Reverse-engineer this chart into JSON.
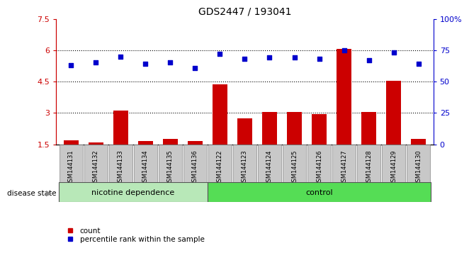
{
  "title": "GDS2447 / 193041",
  "samples": [
    "GSM144131",
    "GSM144132",
    "GSM144133",
    "GSM144134",
    "GSM144135",
    "GSM144136",
    "GSM144122",
    "GSM144123",
    "GSM144124",
    "GSM144125",
    "GSM144126",
    "GSM144127",
    "GSM144128",
    "GSM144129",
    "GSM144130"
  ],
  "count_values": [
    1.7,
    1.6,
    3.1,
    1.65,
    1.75,
    1.65,
    4.35,
    2.75,
    3.05,
    3.05,
    2.95,
    6.05,
    3.05,
    4.55,
    1.75
  ],
  "percentile_values": [
    63,
    65,
    70,
    64,
    65,
    61,
    72,
    68,
    69,
    69,
    68,
    75,
    67,
    73,
    64
  ],
  "nicotine_count": 6,
  "ylim_left": [
    1.5,
    7.5
  ],
  "ylim_right": [
    0,
    100
  ],
  "yticks_left": [
    1.5,
    3.0,
    4.5,
    6.0,
    7.5
  ],
  "ytick_labels_left": [
    "1.5",
    "3",
    "4.5",
    "6",
    "7.5"
  ],
  "yticks_right": [
    0,
    25,
    50,
    75,
    100
  ],
  "ytick_labels_right": [
    "0",
    "25",
    "50",
    "75",
    "100%"
  ],
  "bar_color": "#cc0000",
  "dot_color": "#0000cc",
  "bar_width": 0.6,
  "grid_yticks": [
    3.0,
    4.5,
    6.0
  ],
  "disease_state_label": "disease state",
  "legend_count": "count",
  "legend_percentile": "percentile rank within the sample",
  "nicotine_color": "#b8e8b8",
  "control_color": "#55dd55",
  "xticklabel_bg": "#c8c8c8",
  "group_labels": [
    "nicotine dependence",
    "control"
  ]
}
